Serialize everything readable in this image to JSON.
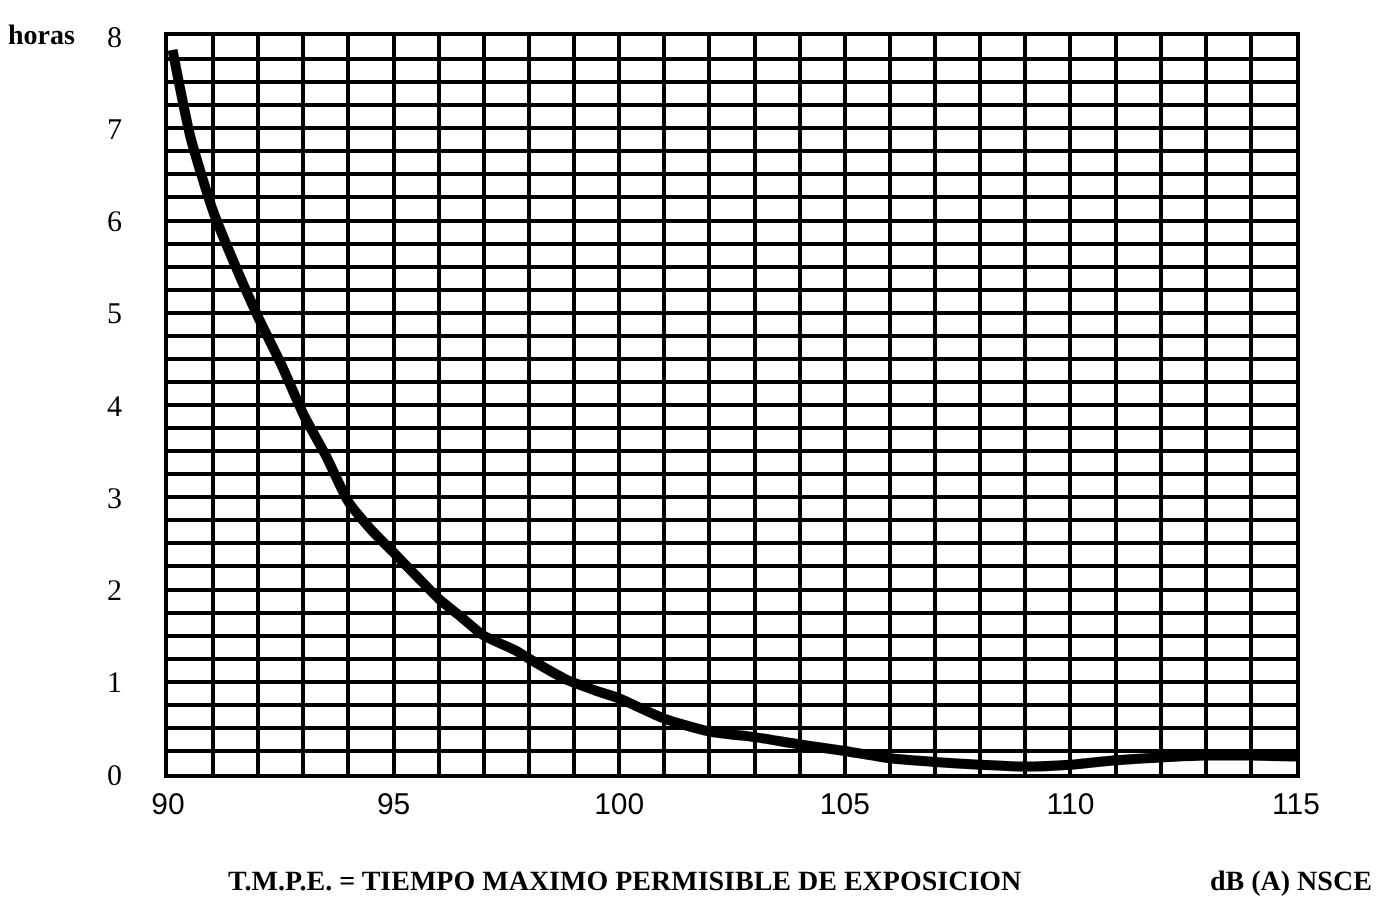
{
  "chart_data": {
    "type": "line",
    "x": [
      90.1,
      90.5,
      91.0,
      91.5,
      92.0,
      92.5,
      93.0,
      93.5,
      94.0,
      94.5,
      95.0,
      95.5,
      96.0,
      96.5,
      97.0,
      97.7,
      98.0,
      98.8,
      99.5,
      100.0,
      101.0,
      102.0,
      103.0,
      104.0,
      105.0,
      106.0,
      107.0,
      108.0,
      109.0,
      110.0,
      111.0,
      112.0,
      113.0,
      114.0,
      115.0
    ],
    "series": [
      {
        "color": "#000000",
        "values": [
          7.85,
          6.9,
          6.1,
          5.5,
          4.95,
          4.45,
          3.9,
          3.45,
          2.95,
          2.65,
          2.4,
          2.15,
          1.9,
          1.7,
          1.5,
          1.34,
          1.25,
          1.03,
          0.9,
          0.82,
          0.6,
          0.46,
          0.4,
          0.32,
          0.25,
          0.17,
          0.13,
          0.1,
          0.08,
          0.1,
          0.15,
          0.18,
          0.2,
          0.2,
          0.19
        ]
      }
    ],
    "xlim": [
      90,
      115
    ],
    "ylim": [
      0,
      8
    ],
    "xticks": [
      90,
      95,
      100,
      105,
      110,
      115
    ],
    "yticks": [
      0,
      1,
      2,
      3,
      4,
      5,
      6,
      7,
      8
    ],
    "ylabel": "horas",
    "xlabel": "dB (A) NSCE",
    "annotations": [
      "T.M.P.E. = TIEMPO MAXIMO PERMISIBLE DE EXPOSICION"
    ],
    "grid": true,
    "legend": false,
    "marker": "none",
    "line_style": "solid"
  }
}
